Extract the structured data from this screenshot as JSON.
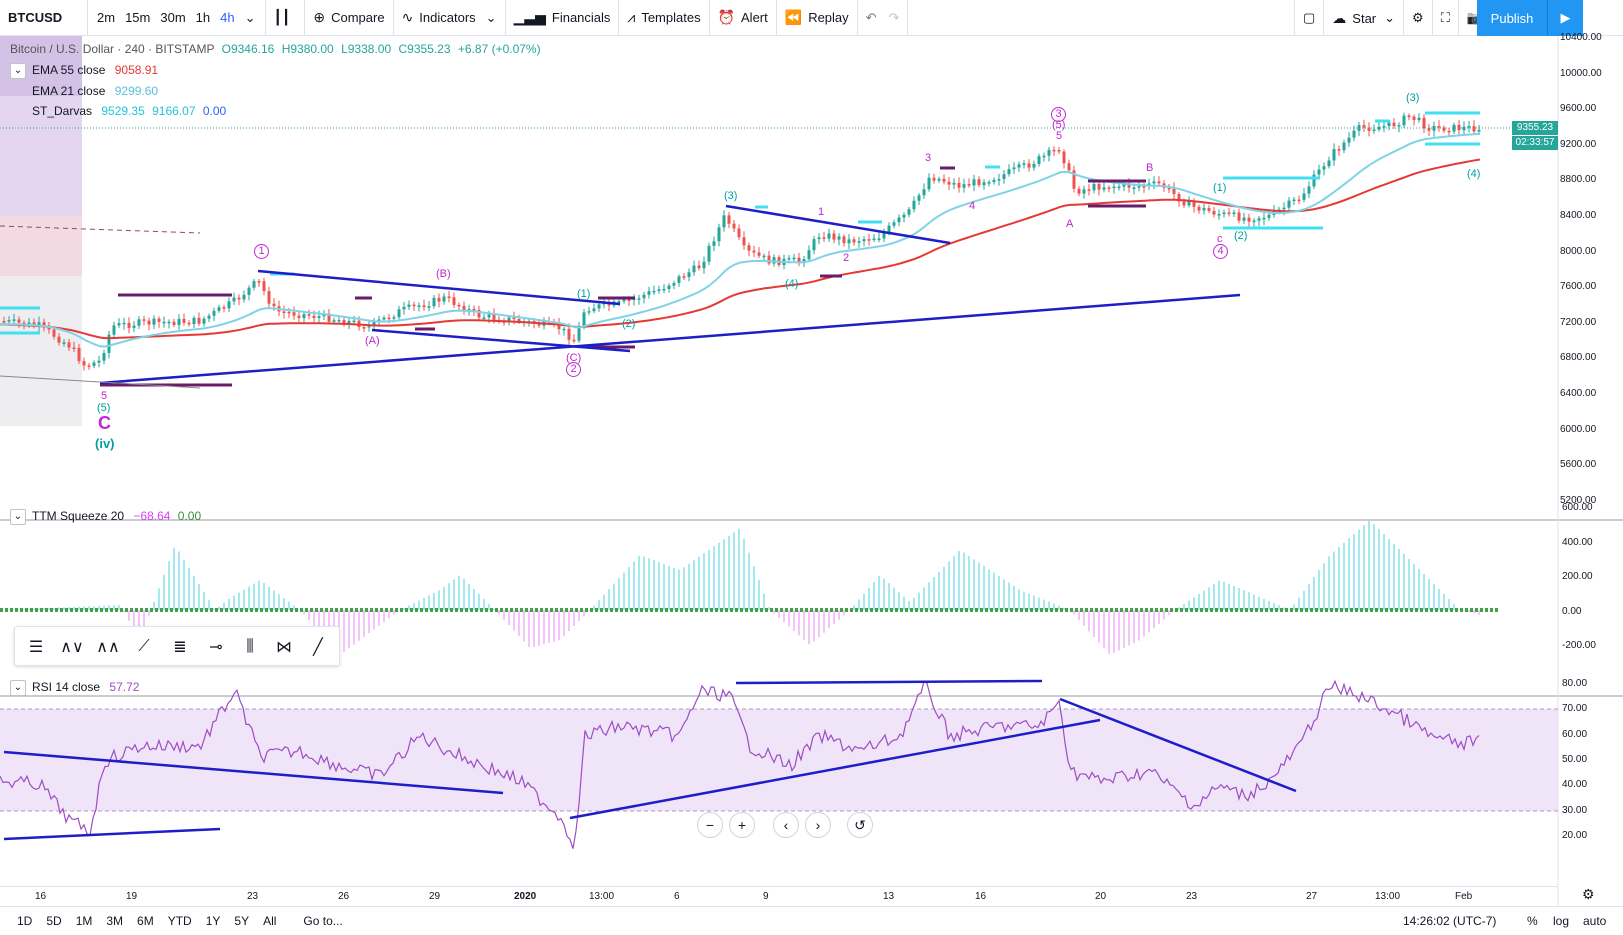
{
  "toolbar": {
    "symbol": "BTCUSD",
    "intervals": [
      "2m",
      "15m",
      "30m",
      "1h",
      "4h"
    ],
    "active_interval": "4h",
    "compare": "Compare",
    "indicators": "Indicators",
    "financials": "Financials",
    "templates": "Templates",
    "alert": "Alert",
    "replay": "Replay",
    "star": "Star",
    "publish": "Publish"
  },
  "main_legend": {
    "title": "Bitcoin / U.S. Dollar · 240 · BITSTAMP",
    "o": "O9346.16",
    "h": "H9380.00",
    "l": "L9338.00",
    "c": "C9355.23",
    "chg": "+6.87 (+0.07%)",
    "ema55_label": "EMA 55 close",
    "ema55_value": "9058.91",
    "ema21_label": "EMA 21 close",
    "ema21_value": "9299.60",
    "darvas_label": "ST_Darvas",
    "darvas_v1": "9529.35",
    "darvas_v2": "9166.07",
    "darvas_v3": "0.00"
  },
  "price_axis": [
    "10400.00",
    "10000.00",
    "9600.00",
    "9200.00",
    "8800.00",
    "8400.00",
    "8000.00",
    "7600.00",
    "7200.00",
    "6800.00",
    "6400.00",
    "6000.00",
    "5600.00",
    "5200.00"
  ],
  "price_badges": {
    "last": "9355.23",
    "countdown": "02:33:57"
  },
  "ttm_legend": {
    "label": "TTM Squeeze 20",
    "v1": "−68.64",
    "v2": "0.00"
  },
  "ttm_axis": [
    "600.00",
    "400.00",
    "200.00",
    "0.00",
    "-200.00"
  ],
  "rsi_legend": {
    "label": "RSI 14 close",
    "value": "57.72"
  },
  "rsi_axis": [
    "80.00",
    "70.00",
    "60.00",
    "50.00",
    "40.00",
    "30.00",
    "20.00"
  ],
  "time_axis": [
    "16",
    "19",
    "23",
    "26",
    "29",
    "2020",
    "13:00",
    "6",
    "9",
    "13",
    "16",
    "20",
    "23",
    "27",
    "13:00",
    "Feb"
  ],
  "wave_labels": {
    "five_a": "5",
    "paren5_a": "(5)",
    "big_c": "C",
    "iv": "(iv)",
    "circ1": "1",
    "b_paren": "(B)",
    "a_paren": "(A)",
    "c_paren": "(C)",
    "circ2": "2",
    "p1_a": "(1)",
    "p2_a": "(2)",
    "p3_a": "(3)",
    "n1": "1",
    "n2": "2",
    "p4_a": "(4)",
    "n3": "3",
    "n4": "4",
    "circ3": "3",
    "p5_b": "(5)",
    "n5": "5",
    "lA": "A",
    "lB": "B",
    "p1_b": "(1)",
    "lc": "c",
    "circ4": "4",
    "p2_b": "(2)",
    "p3_b": "(3)",
    "p4_b": "(4)"
  },
  "bottom": {
    "ranges": [
      "1D",
      "5D",
      "1M",
      "3M",
      "6M",
      "YTD",
      "1Y",
      "5Y",
      "All"
    ],
    "goto": "Go to...",
    "clock": "14:26:02 (UTC-7)",
    "percent": "%",
    "log": "log",
    "auto": "auto"
  },
  "colors": {
    "ema55": "#e53935",
    "ema21": "#7fd3e6",
    "trend": "#1e1ec8",
    "wave": "#c026d3",
    "wave_teal": "#00a0a0",
    "up": "#26a69a",
    "down": "#ef5350"
  }
}
